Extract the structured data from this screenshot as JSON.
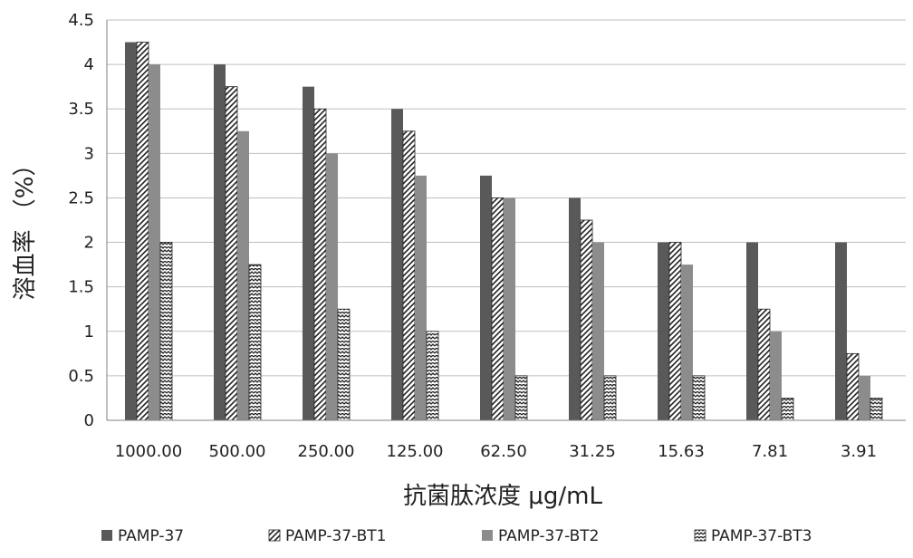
{
  "chart_data": {
    "type": "bar",
    "title": "",
    "xlabel": "抗菌肽浓度 μg/mL",
    "ylabel": "溶血率 （%）",
    "ylim": [
      0,
      4.5
    ],
    "ytick_step": 0.5,
    "yticks": [
      "0",
      "0.5",
      "1",
      "1.5",
      "2",
      "2.5",
      "3",
      "3.5",
      "4",
      "4.5"
    ],
    "grid": true,
    "legend_position": "bottom",
    "categories": [
      "1000.00",
      "500.00",
      "250.00",
      "125.00",
      "62.50",
      "31.25",
      "15.63",
      "7.81",
      "3.91"
    ],
    "series": [
      {
        "name": "PAMP-37",
        "color": "#595959",
        "pattern": "solid",
        "values": [
          4.25,
          4.0,
          3.75,
          3.5,
          2.75,
          2.5,
          2.0,
          2.0,
          2.0
        ]
      },
      {
        "name": "PAMP-37-BT1",
        "color": "#333333",
        "pattern": "diagonal",
        "values": [
          4.25,
          3.75,
          3.5,
          3.25,
          2.5,
          2.25,
          2.0,
          1.25,
          0.75
        ]
      },
      {
        "name": "PAMP-37-BT2",
        "color": "#8c8c8c",
        "pattern": "solid",
        "values": [
          4.0,
          3.25,
          3.0,
          2.75,
          2.5,
          2.0,
          1.75,
          1.0,
          0.5
        ]
      },
      {
        "name": "PAMP-37-BT3",
        "color": "#333333",
        "pattern": "zigzag",
        "values": [
          2.0,
          1.75,
          1.25,
          1.0,
          0.5,
          0.5,
          0.5,
          0.25,
          0.25
        ]
      }
    ]
  }
}
